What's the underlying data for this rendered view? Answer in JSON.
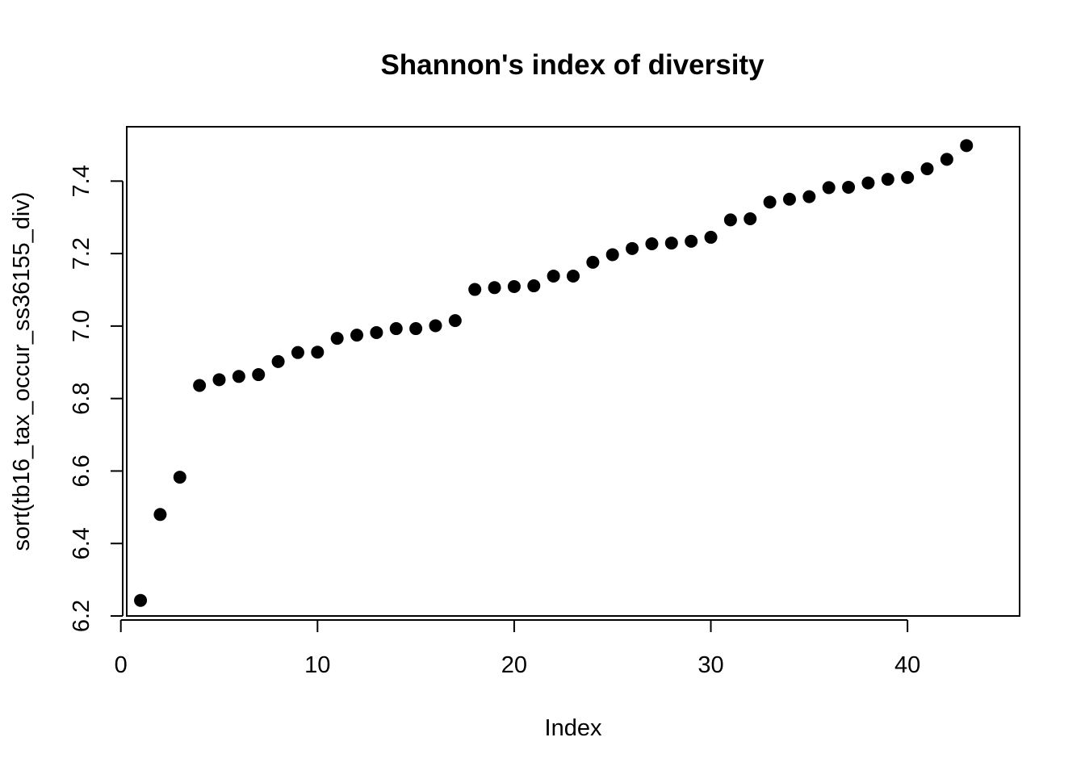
{
  "chart_data": {
    "type": "scatter",
    "title": "Shannon's index of diversity",
    "xlabel": "Index",
    "ylabel": "sort(tb16_tax_occur_ss36155_div)",
    "xlim": [
      0.3,
      45.7
    ],
    "ylim": [
      6.2,
      7.55
    ],
    "xticks": [
      0,
      10,
      20,
      30,
      40
    ],
    "yticks": [
      6.2,
      6.4,
      6.6,
      6.8,
      7.0,
      7.2,
      7.4
    ],
    "xtick_labels": [
      "0",
      "10",
      "20",
      "30",
      "40"
    ],
    "ytick_labels": [
      "6.2",
      "6.4",
      "6.6",
      "6.8",
      "7.0",
      "7.2",
      "7.4"
    ],
    "marker_color": "#000000",
    "grid": false,
    "legend": "none",
    "x": [
      1,
      2,
      3,
      4,
      5,
      6,
      7,
      8,
      9,
      10,
      11,
      12,
      13,
      14,
      15,
      16,
      17,
      18,
      19,
      20,
      21,
      22,
      23,
      24,
      25,
      26,
      27,
      28,
      29,
      30,
      31,
      32,
      33,
      34,
      35,
      36,
      37,
      38,
      39,
      40,
      41,
      42,
      43
    ],
    "y": [
      6.243,
      6.48,
      6.583,
      6.836,
      6.852,
      6.861,
      6.866,
      6.902,
      6.927,
      6.928,
      6.966,
      6.975,
      6.982,
      6.993,
      6.993,
      7.001,
      7.015,
      7.101,
      7.106,
      7.109,
      7.111,
      7.138,
      7.138,
      7.176,
      7.197,
      7.214,
      7.227,
      7.229,
      7.234,
      7.245,
      7.293,
      7.296,
      7.342,
      7.35,
      7.357,
      7.382,
      7.383,
      7.395,
      7.405,
      7.41,
      7.434,
      7.46,
      7.498
    ]
  }
}
